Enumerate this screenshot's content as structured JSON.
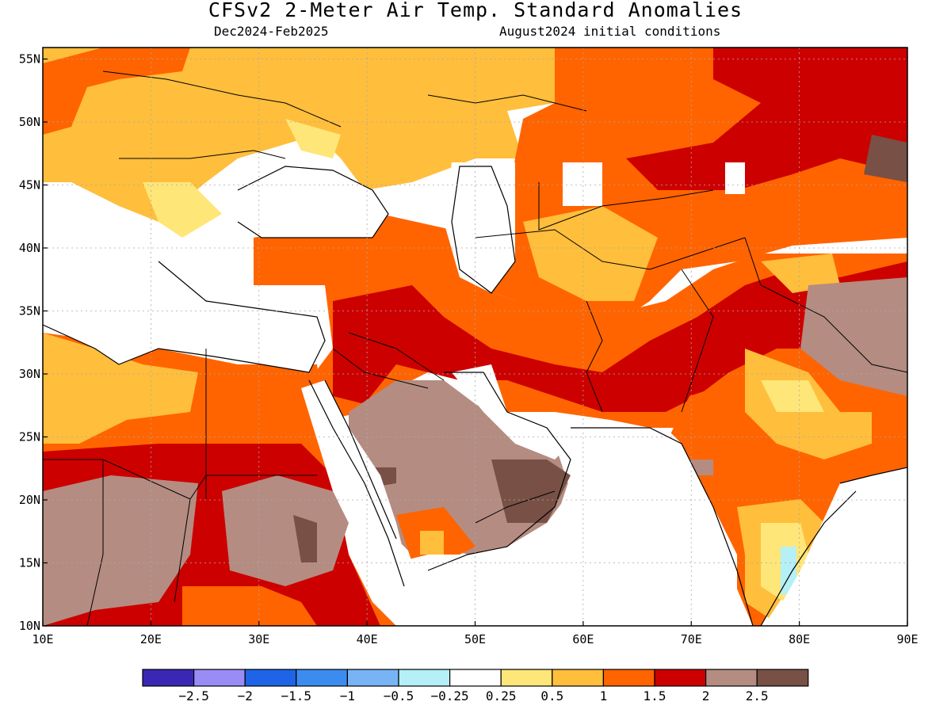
{
  "title": "CFSv2 2-Meter Air Temp. Standard Anomalies",
  "subtitle_left": "Dec2024-Feb2025",
  "subtitle_right": "August2024 initial conditions",
  "lat_labels": [
    "10N",
    "15N",
    "20N",
    "25N",
    "30N",
    "35N",
    "40N",
    "45N",
    "50N",
    "55N"
  ],
  "lon_labels": [
    "10E",
    "20E",
    "30E",
    "40E",
    "50E",
    "60E",
    "70E",
    "80E",
    "90E"
  ],
  "colorbar": {
    "colors": [
      "#3a28b4",
      "#9a8cf5",
      "#1f64e6",
      "#3c8cf0",
      "#78b4f5",
      "#b4f0f5",
      "#ffffff",
      "#ffe678",
      "#ffbe3c",
      "#ff6400",
      "#cd0000",
      "#b48c82",
      "#785046"
    ],
    "labels": [
      "−2.5",
      "−2",
      "−1.5",
      "−1",
      "−0.5",
      "−0.25",
      "0.25",
      "0.5",
      "1",
      "1.5",
      "2",
      "2.5"
    ]
  },
  "colors": {
    "land_white": "#ffffff",
    "sea_lines": "#000000"
  }
}
